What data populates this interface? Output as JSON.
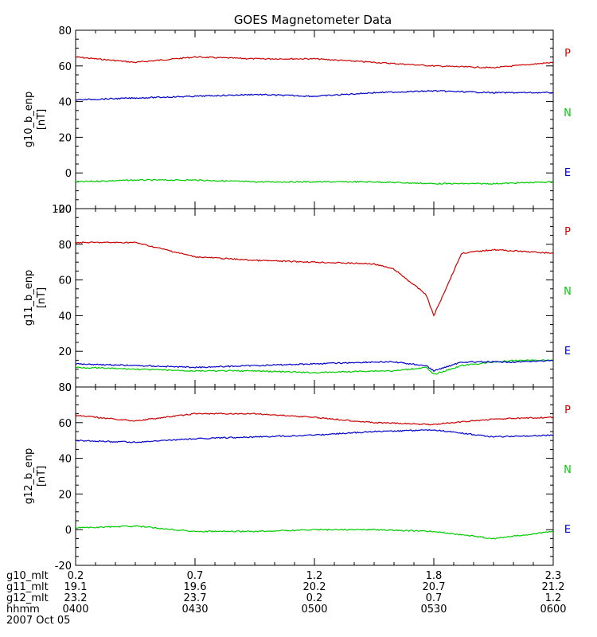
{
  "title": "GOES Magnetometer Data",
  "series_legend": [
    {
      "label": "P",
      "color": "#cc0000"
    },
    {
      "label": "N",
      "color": "#00cc00"
    },
    {
      "label": "E",
      "color": "#0000cc"
    }
  ],
  "time_axis": {
    "tick_times": [
      "0400",
      "0430",
      "0500",
      "0530",
      "0600"
    ],
    "rows": [
      {
        "label": "g10_mlt",
        "values": [
          "0.2",
          "0.7",
          "1.2",
          "1.8",
          "2.3"
        ]
      },
      {
        "label": "g11_mlt",
        "values": [
          "19.1",
          "19.6",
          "20.2",
          "20.7",
          "21.2"
        ]
      },
      {
        "label": "g12_mlt",
        "values": [
          "23.2",
          "23.7",
          "0.2",
          "0.7",
          "1.2"
        ]
      },
      {
        "label": "hhmm",
        "values": [
          "0400",
          "0430",
          "0500",
          "0530",
          "0600"
        ]
      }
    ],
    "date": "2007 Oct 05"
  },
  "chart_data": [
    {
      "type": "line",
      "ylabel": "g10_b_enp",
      "yunit": "[nT]",
      "ylim": [
        -20,
        80
      ],
      "yticks": [
        -20,
        0,
        20,
        40,
        60,
        80
      ],
      "x": [
        "0400",
        "0415",
        "0430",
        "0445",
        "0500",
        "0515",
        "0530",
        "0545",
        "0600"
      ],
      "series": [
        {
          "name": "P",
          "color": "#cc0000",
          "values": [
            65,
            62,
            65,
            64,
            64,
            62,
            60,
            59,
            62
          ]
        },
        {
          "name": "N",
          "color": "#00cc00",
          "values": [
            -5,
            -4,
            -4,
            -5,
            -5,
            -5,
            -6,
            -6,
            -5
          ]
        },
        {
          "name": "E",
          "color": "#0000cc",
          "values": [
            41,
            42,
            43,
            44,
            43,
            45,
            46,
            45,
            45
          ]
        }
      ]
    },
    {
      "type": "line",
      "ylabel": "g11_b_enp",
      "yunit": "[nT]",
      "ylim": [
        0,
        100
      ],
      "yticks": [
        0,
        20,
        40,
        60,
        80,
        100
      ],
      "x": [
        "0400",
        "0415",
        "0430",
        "0445",
        "0500",
        "0515",
        "0520",
        "0528",
        "0530",
        "0537",
        "0545",
        "0552",
        "0600"
      ],
      "series": [
        {
          "name": "P",
          "color": "#cc0000",
          "values": [
            81,
            81,
            73,
            71,
            70,
            69,
            66,
            52,
            40,
            75,
            77,
            76,
            75
          ]
        },
        {
          "name": "N",
          "color": "#00cc00",
          "values": [
            11,
            10,
            9,
            9,
            8,
            9,
            9,
            11,
            7,
            12,
            14,
            15,
            15
          ]
        },
        {
          "name": "E",
          "color": "#0000cc",
          "values": [
            13,
            12,
            11,
            12,
            13,
            14,
            14,
            12,
            9,
            14,
            14,
            14,
            15
          ]
        }
      ]
    },
    {
      "type": "line",
      "ylabel": "g12_b_enp",
      "yunit": "[nT]",
      "ylim": [
        -20,
        80
      ],
      "yticks": [
        -20,
        0,
        20,
        40,
        60,
        80
      ],
      "x": [
        "0400",
        "0415",
        "0430",
        "0445",
        "0500",
        "0515",
        "0530",
        "0545",
        "0600"
      ],
      "series": [
        {
          "name": "P",
          "color": "#cc0000",
          "values": [
            64,
            61,
            65,
            65,
            63,
            60,
            59,
            62,
            63
          ]
        },
        {
          "name": "N",
          "color": "#00cc00",
          "values": [
            1,
            2,
            -1,
            -1,
            0,
            0,
            -1,
            -5,
            -1
          ]
        },
        {
          "name": "E",
          "color": "#0000cc",
          "values": [
            50,
            49,
            51,
            52,
            53,
            55,
            56,
            52,
            53
          ]
        }
      ]
    }
  ]
}
